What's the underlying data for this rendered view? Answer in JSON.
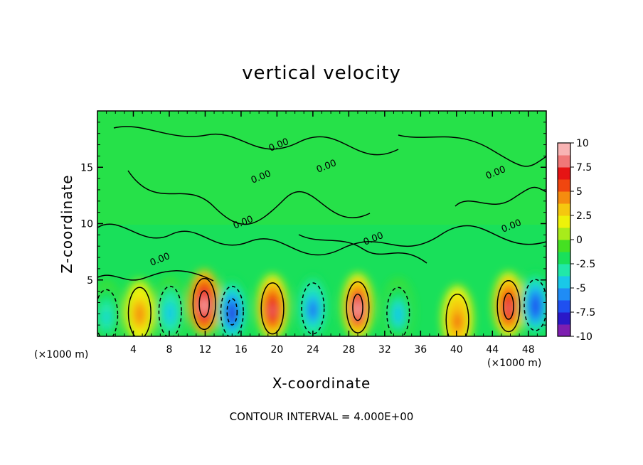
{
  "chart_data": {
    "type": "heatmap",
    "title": "vertical velocity",
    "xlabel": "X-coordinate",
    "ylabel": "Z-coordinate",
    "x_unit_note": "(×1000 m)",
    "footer": "CONTOUR INTERVAL = 4.000E+00",
    "xlim": [
      0,
      50
    ],
    "ylim": [
      0,
      20
    ],
    "x_ticks": [
      "4",
      "8",
      "12",
      "16",
      "20",
      "24",
      "28",
      "32",
      "36",
      "40",
      "44",
      "48"
    ],
    "y_ticks": [
      "5",
      "10",
      "15"
    ],
    "colorbar": {
      "ticks": [
        "10",
        "7.5",
        "5",
        "2.5",
        "0",
        "-2.5",
        "-5",
        "-7.5",
        "-10"
      ],
      "vmin": -10,
      "vmax": 10,
      "colors": [
        "#7d1fb0",
        "#2a18c8",
        "#1f50f0",
        "#1f8cf5",
        "#19c8e8",
        "#21e8a8",
        "#19e05a",
        "#45e022",
        "#a8eb1b",
        "#eef20a",
        "#f5c80f",
        "#f58c0f",
        "#f0460f",
        "#e61414",
        "#f07878",
        "#f8b4b4"
      ]
    },
    "contour_labels": [
      "0.00",
      "0.00",
      "0.00",
      "0.00",
      "0.00",
      "0.00",
      "0.00",
      "0.00"
    ],
    "features": [
      {
        "kind": "updraft",
        "x": 4.7,
        "z": 2.2,
        "peak": 4.5
      },
      {
        "kind": "updraft",
        "x": 11.9,
        "z": 3.0,
        "peak": 10
      },
      {
        "kind": "updraft",
        "x": 19.5,
        "z": 2.6,
        "peak": 7.5
      },
      {
        "kind": "updraft",
        "x": 29.0,
        "z": 2.7,
        "peak": 9
      },
      {
        "kind": "updraft",
        "x": 40.1,
        "z": 1.6,
        "peak": 5
      },
      {
        "kind": "updraft",
        "x": 45.8,
        "z": 2.8,
        "peak": 8.5
      },
      {
        "kind": "downdraft",
        "x": 1.0,
        "z": 2.0,
        "peak": -4
      },
      {
        "kind": "downdraft",
        "x": 8.1,
        "z": 2.3,
        "peak": -5
      },
      {
        "kind": "downdraft",
        "x": 15.0,
        "z": 2.3,
        "peak": -8
      },
      {
        "kind": "downdraft",
        "x": 24.0,
        "z": 2.6,
        "peak": -6.5
      },
      {
        "kind": "downdraft",
        "x": 33.5,
        "z": 2.2,
        "peak": -4.5
      },
      {
        "kind": "downdraft",
        "x": 48.8,
        "z": 2.9,
        "peak": -7.5
      }
    ]
  }
}
